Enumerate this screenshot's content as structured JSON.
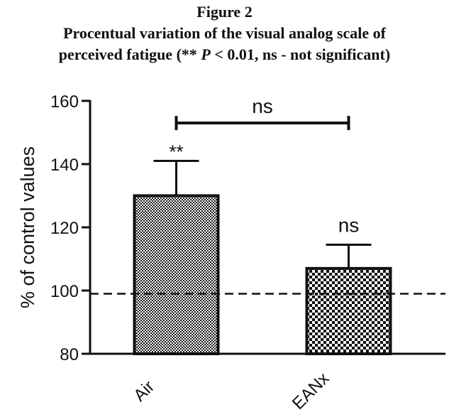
{
  "caption": {
    "figure_label": "Figure 2",
    "line2": "Procentual variation of the visual analog scale of",
    "line3_prefix": "perceived fatigue (** ",
    "line3_italic": "P",
    "line3_suffix": " < 0.01, ns - not significant)"
  },
  "chart_data": {
    "type": "bar",
    "categories": [
      "Air",
      "EANx"
    ],
    "series": [
      {
        "values": [
          130,
          107
        ],
        "error_upper": [
          141,
          114.5
        ]
      }
    ],
    "ylabel": "% of control values",
    "xlabel": "",
    "ylim": [
      80,
      160
    ],
    "yticks": [
      80,
      100,
      120,
      140,
      160
    ],
    "ytick_labels": [
      "80",
      "100",
      "120",
      "140",
      "160"
    ],
    "reference_line": 99,
    "bar_annotations": [
      "**",
      "ns"
    ],
    "comparison": {
      "label": "ns",
      "from": "Air",
      "to": "EANx",
      "y": 153
    },
    "colors": {
      "bar_fill_dark": "#111111",
      "bar_fill_light": "#ffffff",
      "axis": "#111111"
    },
    "grid": false,
    "legend": "none"
  }
}
